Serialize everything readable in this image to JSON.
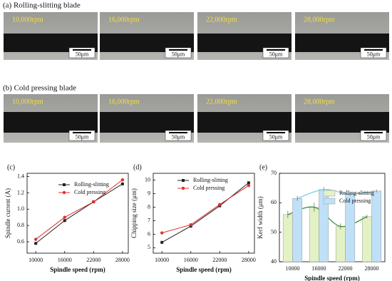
{
  "figure": {
    "rows": [
      {
        "label": "(a) Rolling-slitting blade",
        "panels": [
          {
            "speed": "10,000rpm",
            "scale": "50μm"
          },
          {
            "speed": "16,000rpm",
            "scale": "50μm"
          },
          {
            "speed": "22,000rpm",
            "scale": "50μm"
          },
          {
            "speed": "28,000rpm",
            "scale": "50μm"
          }
        ]
      },
      {
        "label": "(b) Cold pressing blade",
        "panels": [
          {
            "speed": "10,000rpm",
            "scale": "50μm"
          },
          {
            "speed": "16,000rpm",
            "scale": "50μm"
          },
          {
            "speed": "22,000rpm",
            "scale": "50μm"
          },
          {
            "speed": "28,000rpm",
            "scale": "50μm"
          }
        ]
      }
    ]
  },
  "chart_data": [
    {
      "type": "line",
      "panel": "(c)",
      "x_label": "Spindle speed (rpm)",
      "y_label": "Spindle current (A)",
      "x": [
        10000,
        16000,
        22000,
        28000
      ],
      "xlim": [
        8200,
        29200
      ],
      "xticks": [
        10000,
        16000,
        22000,
        28000
      ],
      "ylim": [
        0.46,
        1.44
      ],
      "yticks": [
        0.6,
        0.8,
        {
          "value": 1,
          "label": "1.0"
        },
        1.2,
        1.4
      ],
      "series": [
        {
          "name": "Rolling-slitting",
          "color": "#222222",
          "marker": "square",
          "values": [
            0.58,
            0.86,
            1.09,
            1.31
          ]
        },
        {
          "name": "Cold pressing",
          "color": "#e03030",
          "marker": "circle",
          "values": [
            0.63,
            0.9,
            1.09,
            1.36
          ]
        }
      ]
    },
    {
      "type": "line",
      "panel": "(d)",
      "x_label": "Spindle speed (rpm)",
      "y_label": "Chipping size (μm)",
      "x": [
        10000,
        16000,
        22000,
        28000
      ],
      "xlim": [
        8200,
        29200
      ],
      "xticks": [
        10000,
        16000,
        22000,
        28000
      ],
      "ylim": [
        4.6,
        10.5
      ],
      "yticks": [
        5,
        6,
        7,
        8,
        9,
        10
      ],
      "series": [
        {
          "name": "Rolling-slitting",
          "color": "#222222",
          "marker": "square",
          "values": [
            5.4,
            6.6,
            8.1,
            9.8
          ]
        },
        {
          "name": "Cold pressing",
          "color": "#e03030",
          "marker": "circle",
          "values": [
            6.1,
            6.7,
            8.2,
            9.6
          ]
        }
      ]
    },
    {
      "type": "bar",
      "panel": "(e)",
      "x_label": "Spindle speed (rpm)",
      "y_label": "Kerf width (μm)",
      "categories": [
        "10000",
        "16000",
        "22000",
        "28000"
      ],
      "ylim": [
        40,
        70
      ],
      "yticks": [
        40,
        50,
        60,
        70
      ],
      "series": [
        {
          "name": "Rolling-slitting",
          "color": "#e2f2c4",
          "curve_color": "#2e8b2e",
          "values": [
            56,
            58.5,
            52,
            55.3
          ],
          "errors": [
            1.2,
            1.5,
            1.0,
            0.6
          ]
        },
        {
          "name": "Cold pressing",
          "color": "#bfe0f7",
          "curve_color": "#7cc8e0",
          "values": [
            61.5,
            64.5,
            63,
            64
          ],
          "errors": [
            0.8,
            0.8,
            0.6,
            0.5
          ]
        }
      ]
    }
  ]
}
